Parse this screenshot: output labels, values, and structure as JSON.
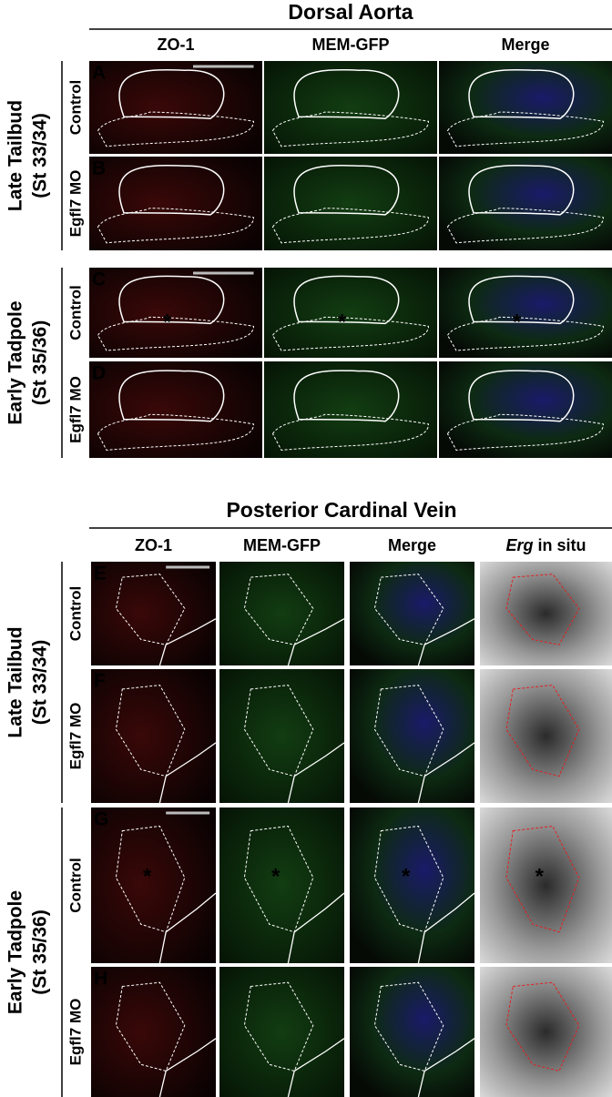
{
  "sections": [
    {
      "title": "Dorsal Aorta",
      "columns": [
        "ZO-1",
        "MEM-GFP",
        "Merge"
      ],
      "groups": [
        {
          "label": "Late Tailbud",
          "stage": "(St 33/34)",
          "rows": [
            "Control",
            "Egfl7 MO"
          ]
        },
        {
          "label": "Early Tadpole",
          "stage": "(St 35/36)",
          "rows": [
            "Control",
            "Egfl7 MO"
          ]
        }
      ],
      "panels": [
        "A",
        "B",
        "C",
        "D"
      ]
    },
    {
      "title": "Posterior Cardinal Vein",
      "columns": [
        "ZO-1",
        "MEM-GFP",
        "Merge"
      ],
      "extra_column": {
        "italic": "Erg",
        "text": "in situ"
      },
      "groups": [
        {
          "label": "Late Tailbud",
          "stage": "(St 33/34)",
          "rows": [
            "Control",
            "Egfl7 MO"
          ]
        },
        {
          "label": "Early Tadpole",
          "stage": "(St 35/36)",
          "rows": [
            "Control",
            "Egfl7 MO"
          ]
        }
      ],
      "panels": [
        "E",
        "F",
        "G",
        "H"
      ]
    }
  ],
  "asterisk": "*"
}
